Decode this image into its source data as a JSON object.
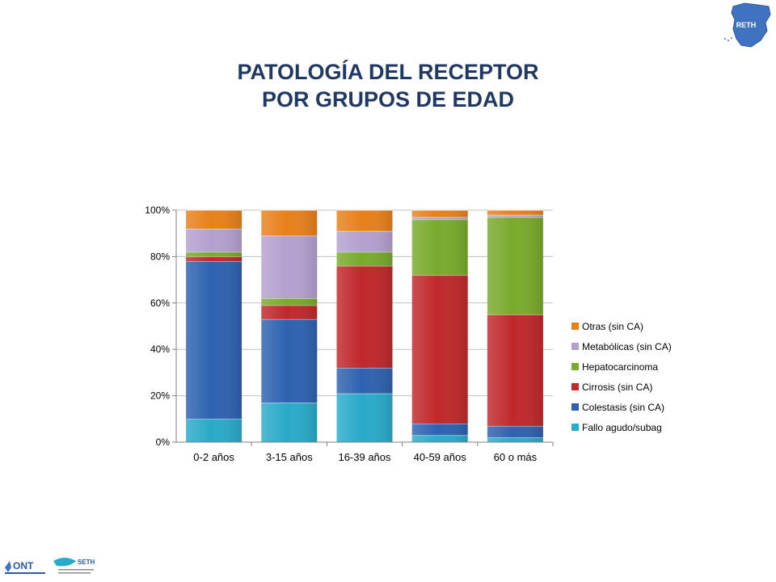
{
  "title_line1": "PATOLOGÍA DEL RECEPTOR",
  "title_line2": "POR GRUPOS DE EDAD",
  "logos": {
    "top_right": "RETH",
    "footer_left": "ONT",
    "footer_right": "SETH"
  },
  "chart_data": {
    "type": "bar",
    "stacked": true,
    "normalized": true,
    "categories": [
      "0-2 años",
      "3-15 años",
      "16-39 años",
      "40-59 años",
      "60 o más"
    ],
    "yticks": [
      "0%",
      "20%",
      "40%",
      "60%",
      "80%",
      "100%"
    ],
    "ylim": [
      0,
      100
    ],
    "grid": true,
    "legend_position": "right",
    "series": [
      {
        "name": "Fallo agudo/subag",
        "color": "#2aaac9",
        "values": [
          10,
          17,
          21,
          3,
          2
        ]
      },
      {
        "name": "Colestasis (sin CA)",
        "color": "#2e62b0",
        "values": [
          68,
          36,
          11,
          5,
          5
        ]
      },
      {
        "name": "Cirrosis (sin CA)",
        "color": "#c0282b",
        "values": [
          2,
          6,
          44,
          64,
          48
        ]
      },
      {
        "name": "Hepatocarcinoma",
        "color": "#79aa2c",
        "values": [
          2,
          3,
          6,
          24,
          42
        ]
      },
      {
        "name": "Metabólicas (sin CA)",
        "color": "#b4a0cf",
        "values": [
          10,
          27,
          9,
          1,
          1
        ]
      },
      {
        "name": "Otras (sin CA)",
        "color": "#e8801c",
        "values": [
          8,
          11,
          9,
          3,
          2
        ]
      }
    ]
  }
}
